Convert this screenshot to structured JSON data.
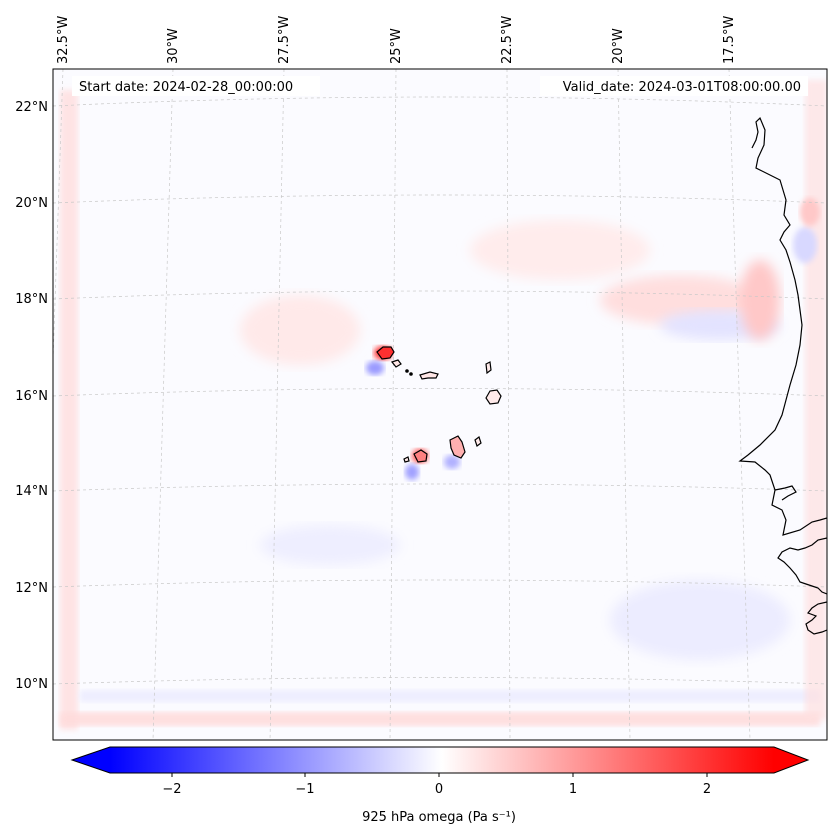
{
  "header": {
    "start_date": "Start date: 2024-02-28_00:00:00",
    "valid_date": "Valid_date: 2024-03-01T08:00:00.00"
  },
  "axes": {
    "lon_labels": [
      "32.5°W",
      "30°W",
      "27.5°W",
      "25°W",
      "22.5°W",
      "20°W",
      "17.5°W"
    ],
    "lat_labels": [
      "22°N",
      "20°N",
      "18°N",
      "16°N",
      "14°N",
      "12°N",
      "10°N"
    ]
  },
  "colorbar": {
    "ticks": [
      "−2",
      "−1",
      "0",
      "1",
      "2"
    ],
    "label": "925 hPa omega (Pa s⁻¹)",
    "range": [
      -2.6,
      2.6
    ],
    "colors": {
      "negative": "#0000ff",
      "zero": "#ffffff",
      "positive": "#ff0000"
    }
  },
  "map": {
    "field_colors": {
      "background": "#fbfbff",
      "coastline": "#000000",
      "gridline": "#c8c8c8"
    }
  }
}
